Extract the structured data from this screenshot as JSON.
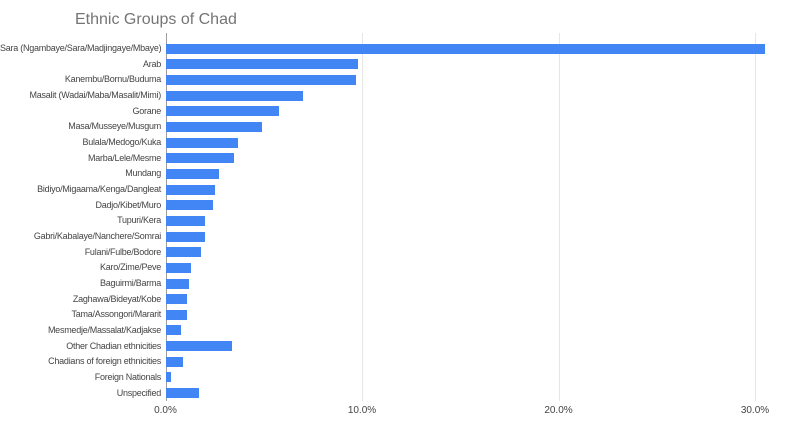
{
  "chart_data": {
    "type": "bar",
    "orientation": "horizontal",
    "title": "Ethnic Groups of Chad",
    "xlabel": "",
    "ylabel": "",
    "unit": "percent",
    "xlim": [
      0,
      31
    ],
    "ticks": [
      0,
      10,
      20,
      30
    ],
    "tick_labels": [
      "0.0%",
      "10.0%",
      "20.0%",
      "30.0%"
    ],
    "grid": "vertical-gridlines-on",
    "legend": "none",
    "bar_color": "#4285f4",
    "categories": [
      "Sara (Ngambaye/Sara/Madjingaye/Mbaye)",
      "Arab",
      "Kanembu/Bornu/Buduma",
      "Masalit (Wadai/Maba/Masalit/Mimi)",
      "Gorane",
      "Masa/Musseye/Musgum",
      "Bulala/Medogo/Kuka",
      "Marba/Lele/Mesme",
      "Mundang",
      "Bidiyo/Migaama/Kenga/Dangleat",
      "Dadjo/Kibet/Muro",
      "Tupuri/Kera",
      "Gabri/Kabalaye/Nanchere/Somrai",
      "Fulani/Fulbe/Bodore",
      "Karo/Zime/Peve",
      "Baguirmi/Barma",
      "Zaghawa/Bideyat/Kobe",
      "Tama/Assongori/Mararit",
      "Mesmedje/Massalat/Kadjakse",
      "Other Chadian ethnicities",
      "Chadians of foreign ethnicities",
      "Foreign Nationals",
      "Unspecified"
    ],
    "values": [
      30.5,
      9.8,
      9.7,
      7.0,
      5.8,
      4.9,
      3.7,
      3.5,
      2.7,
      2.5,
      2.4,
      2.0,
      2.0,
      1.8,
      1.3,
      1.2,
      1.1,
      1.1,
      0.8,
      3.4,
      0.9,
      0.3,
      1.7
    ]
  },
  "colors": {
    "background": "#ffffff",
    "bar": "#4285f4",
    "title_text": "#757575",
    "axis_text": "#444444",
    "gridline": "#e6e6e6",
    "baseline": "#9e9e9e"
  }
}
